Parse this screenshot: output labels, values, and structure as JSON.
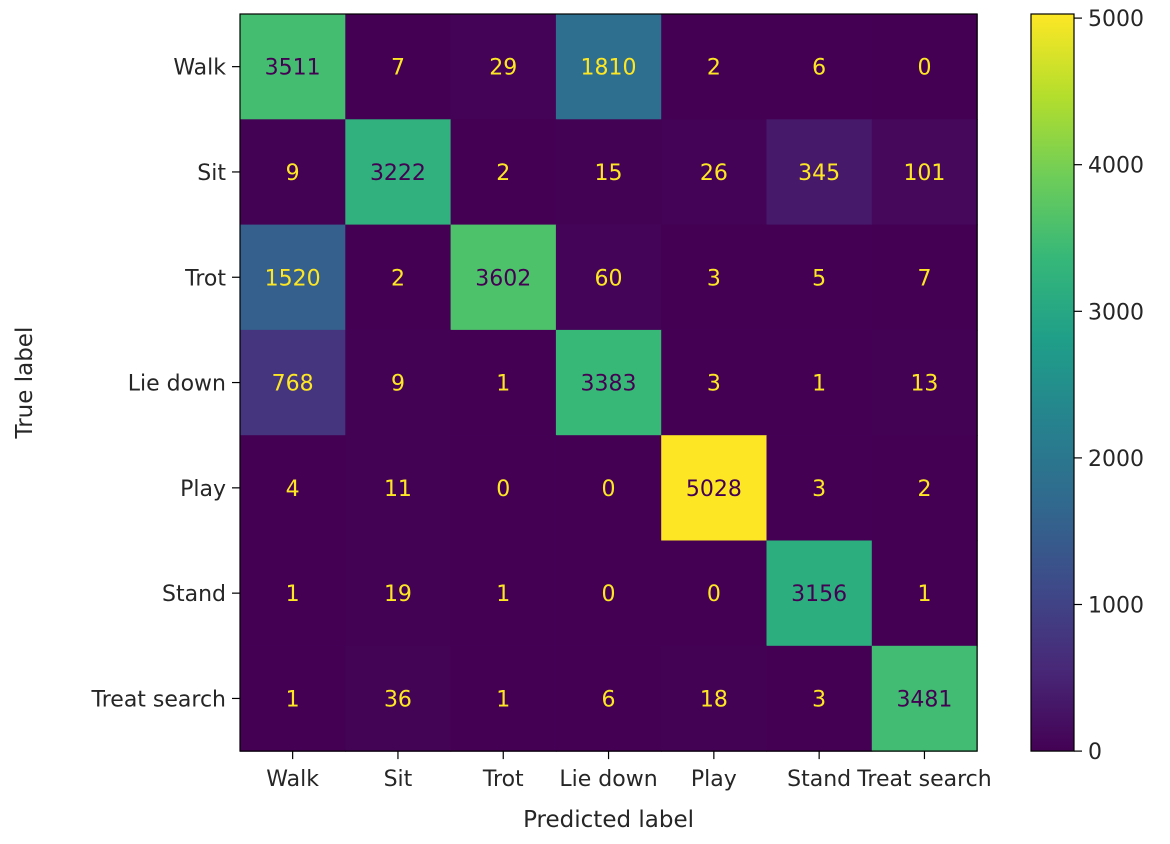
{
  "chart_data": {
    "type": "heatmap",
    "title": "",
    "xlabel": "Predicted label",
    "ylabel": "True label",
    "x_categories": [
      "Walk",
      "Sit",
      "Trot",
      "Lie down",
      "Play",
      "Stand",
      "Treat search"
    ],
    "y_categories": [
      "Walk",
      "Sit",
      "Trot",
      "Lie down",
      "Play",
      "Stand",
      "Treat search"
    ],
    "values": [
      [
        3511,
        7,
        29,
        1810,
        2,
        6,
        0
      ],
      [
        9,
        3222,
        2,
        15,
        26,
        345,
        101
      ],
      [
        1520,
        2,
        3602,
        60,
        3,
        5,
        7
      ],
      [
        768,
        9,
        1,
        3383,
        3,
        1,
        13
      ],
      [
        4,
        11,
        0,
        0,
        5028,
        3,
        2
      ],
      [
        1,
        19,
        1,
        0,
        0,
        3156,
        1
      ],
      [
        1,
        36,
        1,
        6,
        18,
        3,
        3481
      ]
    ],
    "colormap": "viridis",
    "colorbar": {
      "range": [
        0,
        5028
      ],
      "ticks": [
        0,
        1000,
        2000,
        3000,
        4000,
        5000
      ]
    },
    "text_colors": {
      "light": "#fde725",
      "dark": "#440154"
    }
  }
}
